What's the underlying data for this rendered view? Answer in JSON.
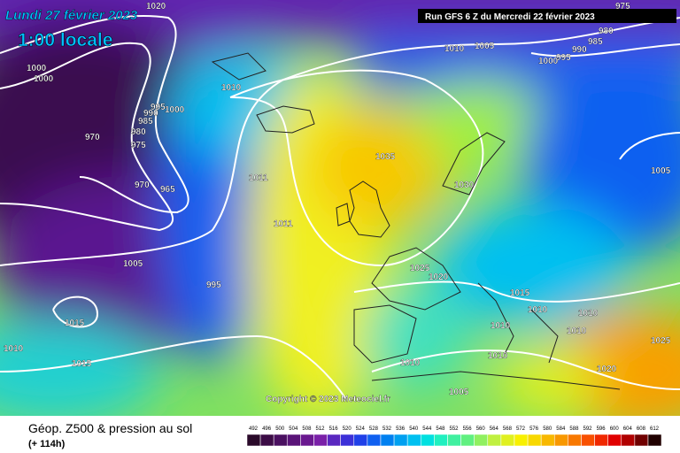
{
  "header": {
    "date": "Lundi 27 février 2023",
    "time": "1:00 locale",
    "run": "Run GFS 6 Z du Mercredi 22 février 2023"
  },
  "copyright": "Copyright © 2023 Meteociel.fr",
  "legend": {
    "title": "Géop. Z500 & pression au sol",
    "lead": "(+ 114h)",
    "scale": [
      492,
      496,
      500,
      504,
      508,
      512,
      516,
      520,
      524,
      528,
      532,
      536,
      540,
      544,
      548,
      552,
      556,
      560,
      564,
      568,
      572,
      576,
      580,
      584,
      588,
      592,
      596,
      600,
      604,
      608,
      612
    ],
    "colors": [
      "#2a0a2a",
      "#3c0c46",
      "#4a1060",
      "#5a1478",
      "#6a1890",
      "#7a20a8",
      "#5a28c0",
      "#3c30d8",
      "#2040e8",
      "#1060f0",
      "#0080f0",
      "#00a0f0",
      "#00c0f0",
      "#00e0e0",
      "#20f0c0",
      "#40f0a0",
      "#60f080",
      "#90f060",
      "#c0f040",
      "#e0f020",
      "#f8f000",
      "#f8d800",
      "#f8b800",
      "#f89800",
      "#f87800",
      "#f85000",
      "#f02800",
      "#e00000",
      "#b00000",
      "#700000",
      "#200000"
    ]
  },
  "isobar_labels": [
    1020,
    975,
    980,
    985,
    990,
    995,
    1000,
    1010,
    1005,
    1000,
    1000,
    1010,
    995,
    990,
    1000,
    985,
    980,
    975,
    970,
    970,
    965,
    1035,
    1030,
    1005,
    1011,
    1011,
    1005,
    995,
    1025,
    1020,
    1015,
    1010,
    1010,
    1015,
    1010,
    1010,
    1025,
    1010,
    1010,
    1015,
    1010,
    1020,
    1005
  ]
}
